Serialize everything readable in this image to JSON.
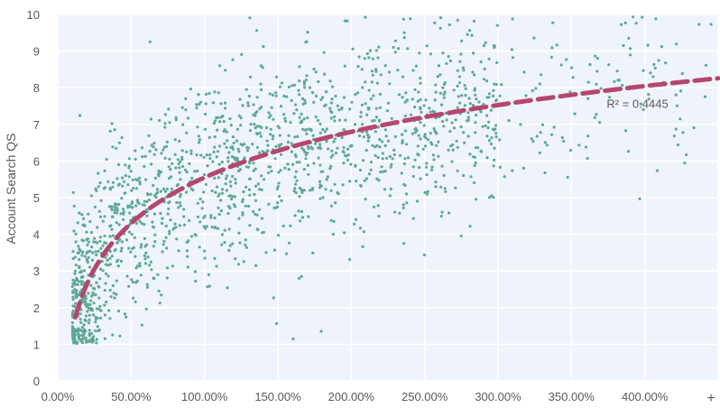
{
  "chart_data": {
    "type": "scatter",
    "title": "",
    "xlabel": "",
    "ylabel": "Account Search QS",
    "xlim": [
      0,
      4.5
    ],
    "ylim": [
      0,
      10
    ],
    "x_tick_values": [
      0,
      0.5,
      1.0,
      1.5,
      2.0,
      2.5,
      3.0,
      3.5,
      4.0
    ],
    "x_tick_labels": [
      "0.00%",
      "50.00%",
      "100.00%",
      "150.00%",
      "200.00%",
      "250.00%",
      "300.00%",
      "350.00%",
      "400.00%"
    ],
    "x_axis_end_label": "+",
    "y_tick_labels": [
      "0",
      "1",
      "2",
      "3",
      "4",
      "5",
      "6",
      "7",
      "8",
      "9",
      "10"
    ],
    "grid": true,
    "colors": {
      "points": "#5fa896",
      "trendline": "#b5466f",
      "plot_background": "#eef4fa",
      "grid": "#ffffff",
      "text": "#595959"
    },
    "trendline": {
      "type": "logarithmic",
      "style": "dashed",
      "intercept": 5.55,
      "slope": 1.8,
      "x_range": [
        0.12,
        4.5
      ],
      "annotation": "R² = 0.4445",
      "annotation_x": 3.95,
      "annotation_y": 7.45
    },
    "point_cloud": {
      "count": 1700,
      "note_fraction_core": 0.8,
      "core_x_range": [
        0.1,
        3.0
      ],
      "sparse_x_range": [
        0.1,
        4.5
      ],
      "residual_sd": 1.3,
      "y_range": [
        1,
        10
      ]
    }
  }
}
